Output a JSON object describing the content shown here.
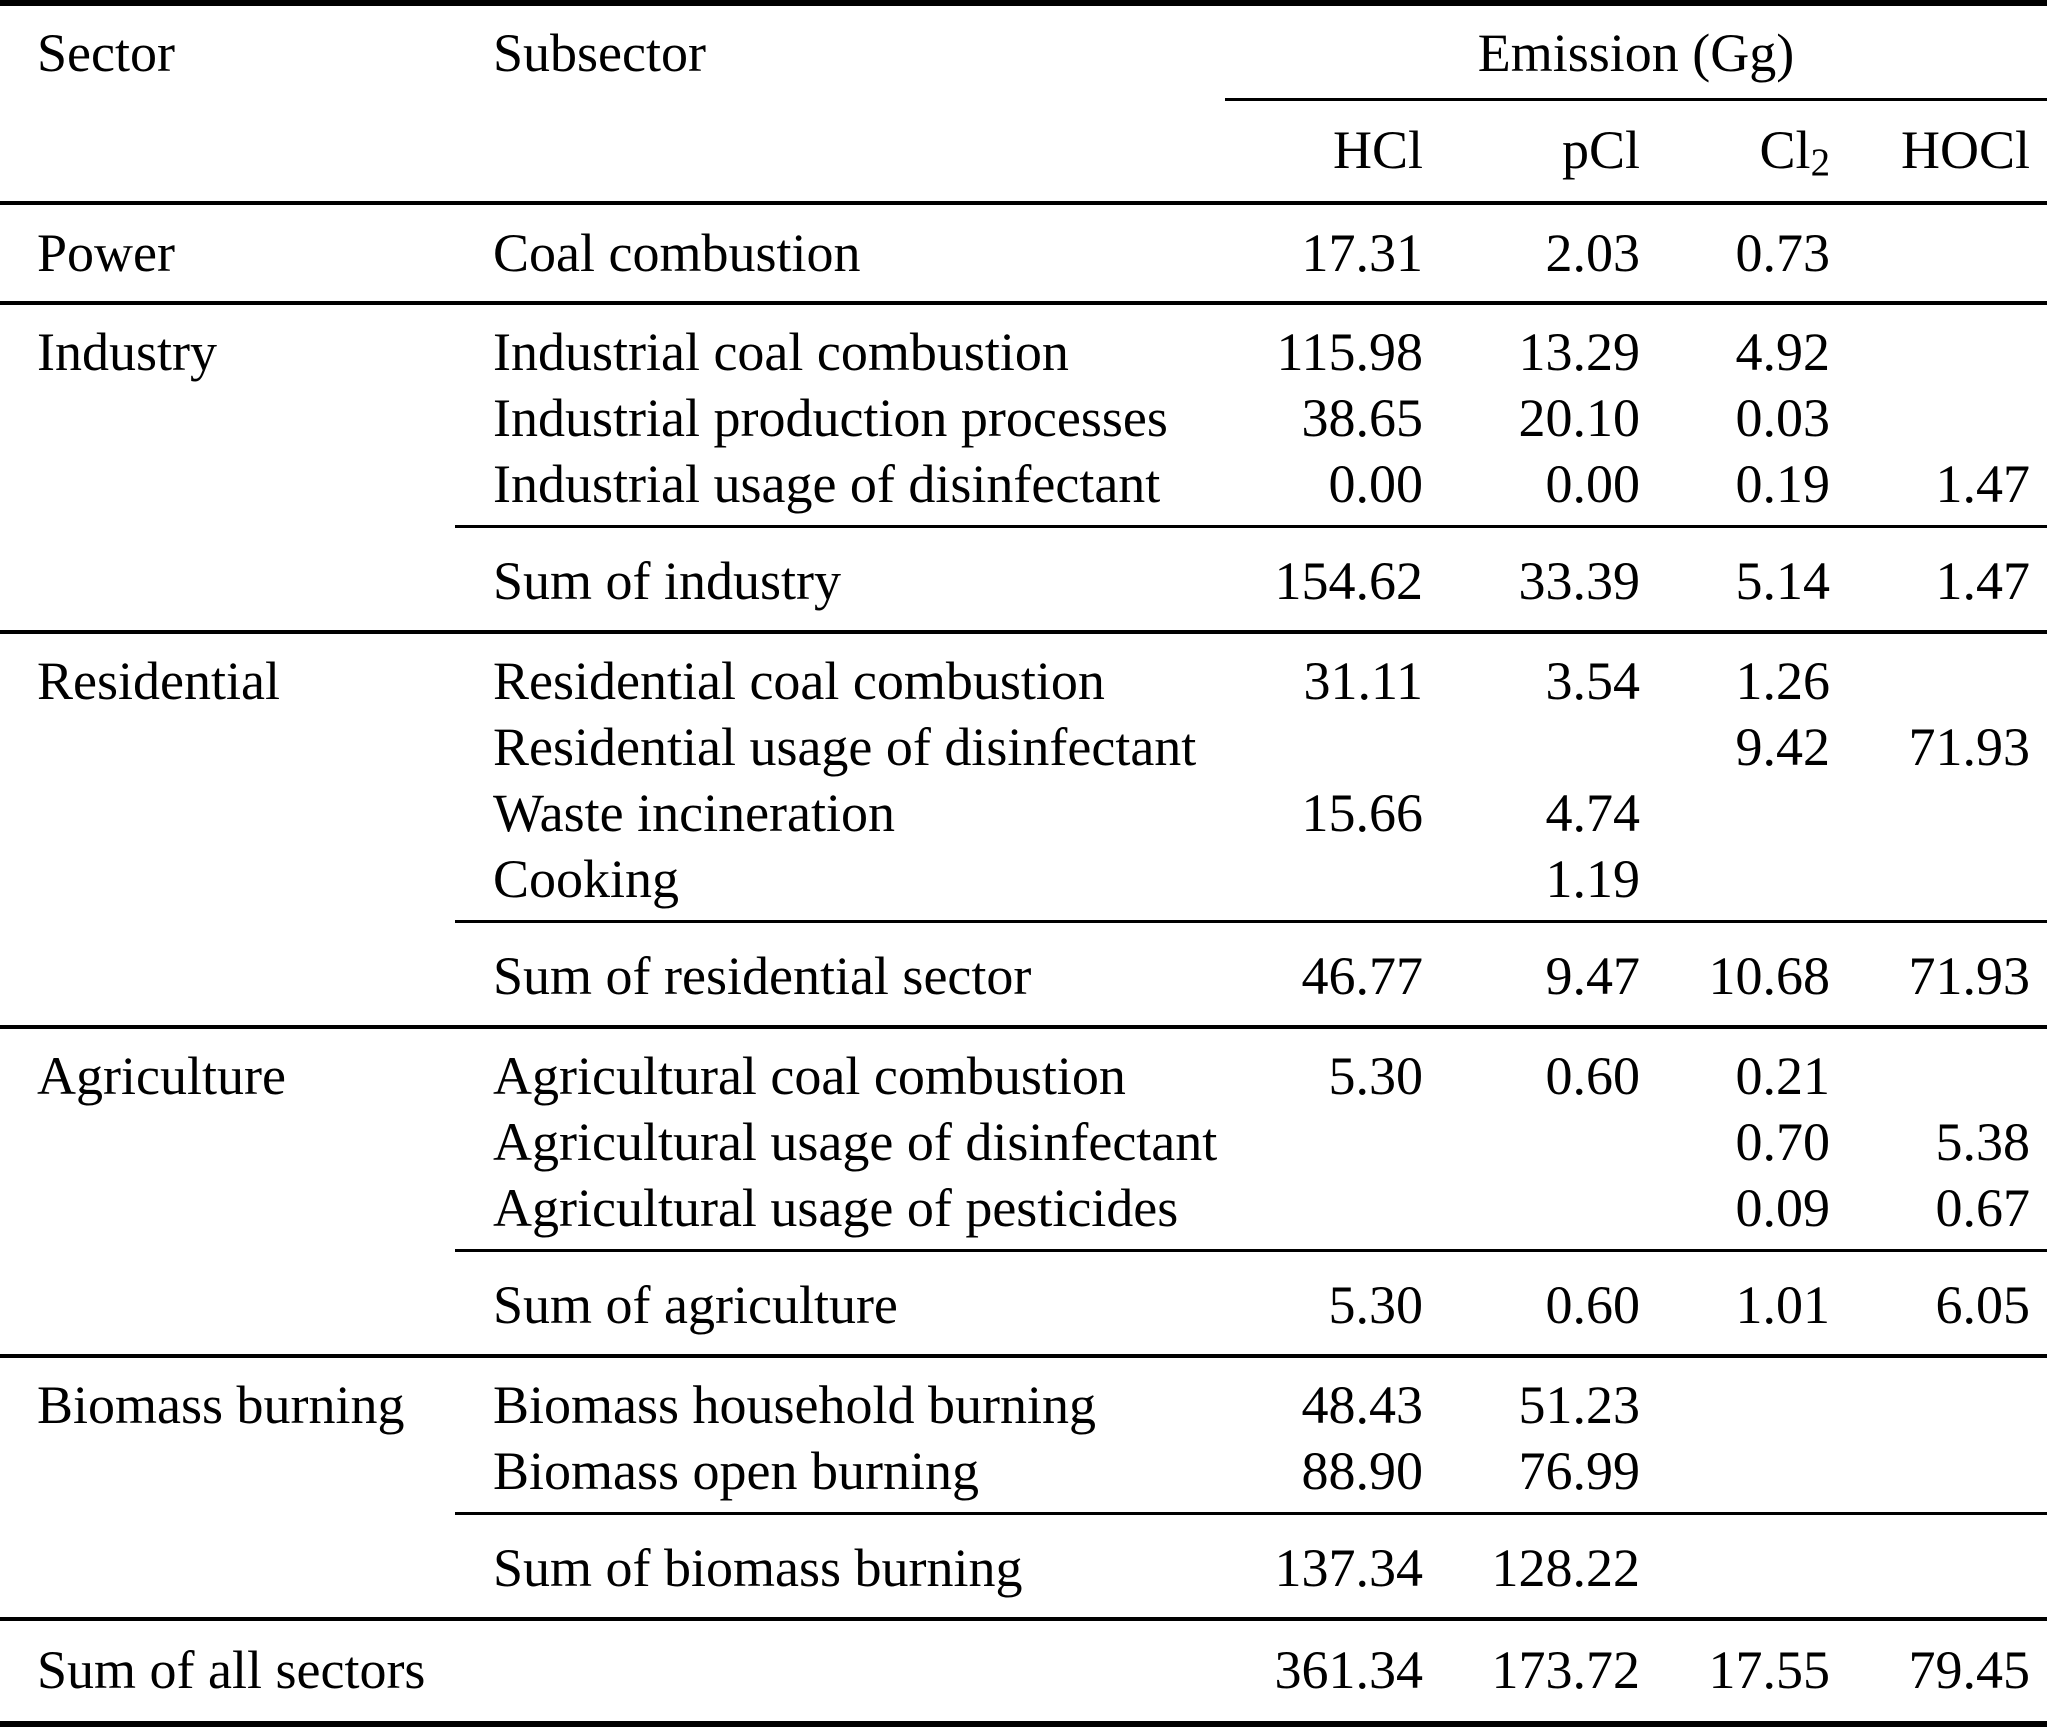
{
  "page": {
    "background": "#ffffff",
    "text_color": "#000000",
    "rule_color": "#000000"
  },
  "table": {
    "headers": {
      "sector": "Sector",
      "subsector": "Subsector",
      "emission": "Emission (Gg)"
    },
    "species": [
      {
        "base": "HCl",
        "sub": ""
      },
      {
        "base": "pCl",
        "sub": ""
      },
      {
        "base": "Cl",
        "sub": "2"
      },
      {
        "base": "HOCl",
        "sub": ""
      }
    ],
    "sections": [
      {
        "sector": "Power",
        "rows": [
          {
            "subsector": "Coal combustion",
            "values": [
              "17.31",
              "2.03",
              "0.73",
              ""
            ]
          }
        ],
        "sum": null
      },
      {
        "sector": "Industry",
        "rows": [
          {
            "subsector": "Industrial coal combustion",
            "values": [
              "115.98",
              "13.29",
              "4.92",
              ""
            ]
          },
          {
            "subsector": "Industrial production processes",
            "values": [
              "38.65",
              "20.10",
              "0.03",
              ""
            ]
          },
          {
            "subsector": "Industrial usage of disinfectant",
            "values": [
              "0.00",
              "0.00",
              "0.19",
              "1.47"
            ]
          }
        ],
        "sum": {
          "label": "Sum of industry",
          "values": [
            "154.62",
            "33.39",
            "5.14",
            "1.47"
          ]
        }
      },
      {
        "sector": "Residential",
        "rows": [
          {
            "subsector": "Residential coal combustion",
            "values": [
              "31.11",
              "3.54",
              "1.26",
              ""
            ]
          },
          {
            "subsector": "Residential usage of disinfectant",
            "values": [
              "",
              "",
              "9.42",
              "71.93"
            ]
          },
          {
            "subsector": "Waste incineration",
            "values": [
              "15.66",
              "4.74",
              "",
              ""
            ]
          },
          {
            "subsector": "Cooking",
            "values": [
              "",
              "1.19",
              "",
              ""
            ]
          }
        ],
        "sum": {
          "label": "Sum of residential sector",
          "values": [
            "46.77",
            "9.47",
            "10.68",
            "71.93"
          ]
        }
      },
      {
        "sector": "Agriculture",
        "rows": [
          {
            "subsector": "Agricultural coal combustion",
            "values": [
              "5.30",
              "0.60",
              "0.21",
              ""
            ]
          },
          {
            "subsector": "Agricultural usage of disinfectant",
            "values": [
              "",
              "",
              "0.70",
              "5.38"
            ]
          },
          {
            "subsector": "Agricultural usage of pesticides",
            "values": [
              "",
              "",
              "0.09",
              "0.67"
            ]
          }
        ],
        "sum": {
          "label": "Sum of agriculture",
          "values": [
            "5.30",
            "0.60",
            "1.01",
            "6.05"
          ]
        }
      },
      {
        "sector": "Biomass burning",
        "rows": [
          {
            "subsector": "Biomass household burning",
            "values": [
              "48.43",
              "51.23",
              "",
              ""
            ]
          },
          {
            "subsector": "Biomass open burning",
            "values": [
              "88.90",
              "76.99",
              "",
              ""
            ]
          }
        ],
        "sum": {
          "label": "Sum of biomass burning",
          "values": [
            "137.34",
            "128.22",
            "",
            ""
          ]
        }
      }
    ],
    "total": {
      "label": "Sum of all sectors",
      "values": [
        "361.34",
        "173.72",
        "17.55",
        "79.45"
      ]
    }
  },
  "chart_data": {
    "type": "table",
    "title": "Emission (Gg)",
    "columns": [
      "Sector",
      "Subsector",
      "HCl",
      "pCl",
      "Cl2",
      "HOCl"
    ],
    "rows": [
      [
        "Power",
        "Coal combustion",
        17.31,
        2.03,
        0.73,
        null
      ],
      [
        "Industry",
        "Industrial coal combustion",
        115.98,
        13.29,
        4.92,
        null
      ],
      [
        "Industry",
        "Industrial production processes",
        38.65,
        20.1,
        0.03,
        null
      ],
      [
        "Industry",
        "Industrial usage of disinfectant",
        0.0,
        0.0,
        0.19,
        1.47
      ],
      [
        "Industry",
        "Sum of industry",
        154.62,
        33.39,
        5.14,
        1.47
      ],
      [
        "Residential",
        "Residential coal combustion",
        31.11,
        3.54,
        1.26,
        null
      ],
      [
        "Residential",
        "Residential usage of disinfectant",
        null,
        null,
        9.42,
        71.93
      ],
      [
        "Residential",
        "Waste incineration",
        15.66,
        4.74,
        null,
        null
      ],
      [
        "Residential",
        "Cooking",
        null,
        1.19,
        null,
        null
      ],
      [
        "Residential",
        "Sum of residential sector",
        46.77,
        9.47,
        10.68,
        71.93
      ],
      [
        "Agriculture",
        "Agricultural coal combustion",
        5.3,
        0.6,
        0.21,
        null
      ],
      [
        "Agriculture",
        "Agricultural usage of disinfectant",
        null,
        null,
        0.7,
        5.38
      ],
      [
        "Agriculture",
        "Agricultural usage of pesticides",
        null,
        null,
        0.09,
        0.67
      ],
      [
        "Agriculture",
        "Sum of agriculture",
        5.3,
        0.6,
        1.01,
        6.05
      ],
      [
        "Biomass burning",
        "Biomass household burning",
        48.43,
        51.23,
        null,
        null
      ],
      [
        "Biomass burning",
        "Biomass open burning",
        88.9,
        76.99,
        null,
        null
      ],
      [
        "Biomass burning",
        "Sum of biomass burning",
        137.34,
        128.22,
        null,
        null
      ],
      [
        "Sum of all sectors",
        "",
        361.34,
        173.72,
        17.55,
        79.45
      ]
    ]
  }
}
